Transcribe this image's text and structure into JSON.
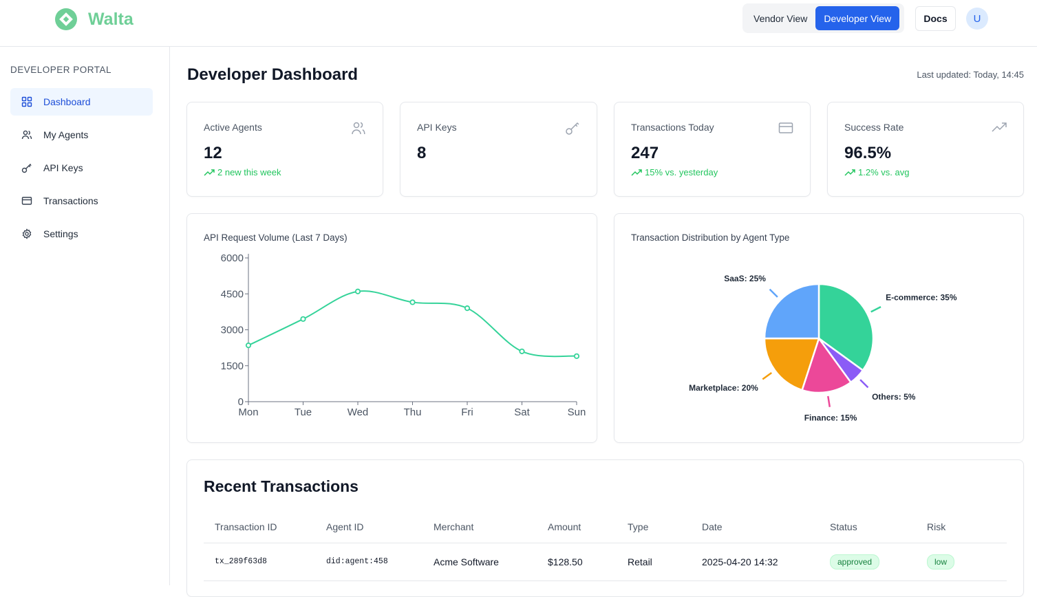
{
  "header": {
    "brand": "Walta",
    "view_toggle": [
      "Vendor View",
      "Developer View"
    ],
    "active_view": "Developer View",
    "docs_label": "Docs",
    "avatar_initial": "U"
  },
  "sidebar": {
    "title": "DEVELOPER PORTAL",
    "items": [
      {
        "label": "Dashboard",
        "icon": "grid-icon",
        "active": true
      },
      {
        "label": "My Agents",
        "icon": "users-icon",
        "active": false
      },
      {
        "label": "API Keys",
        "icon": "key-icon",
        "active": false
      },
      {
        "label": "Transactions",
        "icon": "credit-card-icon",
        "active": false
      },
      {
        "label": "Settings",
        "icon": "gear-icon",
        "active": false
      }
    ]
  },
  "main": {
    "title": "Developer Dashboard",
    "last_updated": "Last updated: Today, 14:45",
    "stats": [
      {
        "label": "Active Agents",
        "value": "12",
        "trend": "2 new this week",
        "icon": "users-icon"
      },
      {
        "label": "API Keys",
        "value": "8",
        "trend": "",
        "icon": "key-icon"
      },
      {
        "label": "Transactions Today",
        "value": "247",
        "trend": "15% vs. yesterday",
        "icon": "credit-card-icon"
      },
      {
        "label": "Success Rate",
        "value": "96.5%",
        "trend": "1.2% vs. avg",
        "icon": "trending-up-icon"
      }
    ],
    "line_chart_title": "API Request Volume (Last 7 Days)",
    "pie_chart_title": "Transaction Distribution by Agent Type",
    "transactions": {
      "title": "Recent Transactions",
      "columns": [
        "Transaction ID",
        "Agent ID",
        "Merchant",
        "Amount",
        "Type",
        "Date",
        "Status",
        "Risk"
      ],
      "rows": [
        {
          "id": "tx_289f63d8",
          "agent": "did:agent:458",
          "merchant": "Acme Software",
          "amount": "$128.50",
          "type": "Retail",
          "date": "2025-04-20 14:32",
          "status": "approved",
          "risk": "low"
        }
      ]
    }
  },
  "colors": {
    "brand": "#6fcf97",
    "accent": "#2563eb",
    "line": "#34d399",
    "positive": "#22c55e"
  },
  "chart_data": [
    {
      "type": "line",
      "title": "API Request Volume (Last 7 Days)",
      "categories": [
        "Mon",
        "Tue",
        "Wed",
        "Thu",
        "Fri",
        "Sat",
        "Sun"
      ],
      "values": [
        2350,
        3450,
        4600,
        4150,
        3900,
        2100,
        1900
      ],
      "yticks": [
        "0",
        "1500",
        "3000",
        "4500",
        "6000"
      ],
      "ylim": [
        0,
        6000
      ],
      "xlabel": "",
      "ylabel": ""
    },
    {
      "type": "pie",
      "title": "Transaction Distribution by Agent Type",
      "slices": [
        {
          "label": "E-commerce: 35%",
          "value": 35,
          "color": "#34d399"
        },
        {
          "label": "Others: 5%",
          "value": 5,
          "color": "#8b5cf6"
        },
        {
          "label": "Finance: 15%",
          "value": 15,
          "color": "#ec4899"
        },
        {
          "label": "Marketplace: 20%",
          "value": 20,
          "color": "#f59e0b"
        },
        {
          "label": "SaaS: 25%",
          "value": 25,
          "color": "#60a5fa"
        }
      ]
    }
  ]
}
